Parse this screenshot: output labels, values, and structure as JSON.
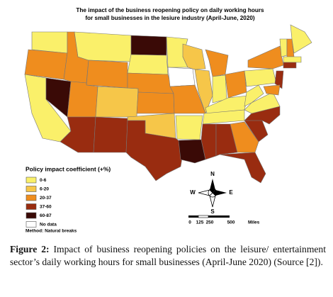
{
  "map": {
    "title": [
      "The impact of the business reopening policy on daily working hours",
      "for small businesses in the lesiure industry (April-June, 2020)"
    ],
    "legend": {
      "title": "Policy impact coefficient (+%)",
      "items": [
        {
          "label": "0-6",
          "color": "#faf06a"
        },
        {
          "label": "6-20",
          "color": "#f6c649"
        },
        {
          "label": "20-37",
          "color": "#ef8d1e"
        },
        {
          "label": "37-60",
          "color": "#992c10"
        },
        {
          "label": "60-87",
          "color": "#3a0a06"
        },
        {
          "label": "No data",
          "color": "#ffffff"
        }
      ],
      "method": "Method: Natural breaks"
    },
    "compass": {
      "n": "N",
      "w": "W",
      "e": "E",
      "s": "S"
    },
    "scale": {
      "labels": [
        "0",
        "125",
        "250",
        "500"
      ],
      "unit": "Miles"
    }
  },
  "caption": {
    "label": "Figure 2:",
    "text": "Impact of business reopening policies on the leisure/ entertainment sector’s daily working hours for small businesses (April-June 2020) (Source [2])."
  }
}
